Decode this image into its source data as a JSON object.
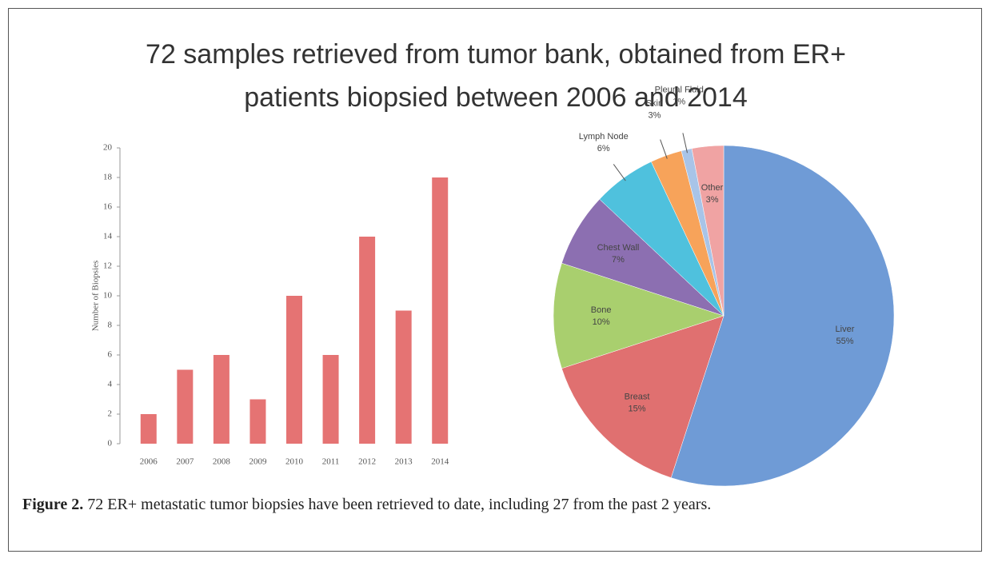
{
  "title": [
    "72 samples retrieved from tumor bank, obtained from ER+",
    "patients biopsied between 2006 and 2014"
  ],
  "caption": {
    "label": "Figure 2.",
    "text": "72 ER+ metastatic tumor biopsies have been retrieved to date, including 27 from the past 2 years."
  },
  "chart_data": [
    {
      "type": "bar",
      "y_label": "Number of Biopsies",
      "categories": [
        "2006",
        "2007",
        "2008",
        "2009",
        "2010",
        "2011",
        "2012",
        "2013",
        "2014"
      ],
      "values": [
        2,
        5,
        6,
        3,
        10,
        6,
        14,
        9,
        18
      ],
      "color": "#e57373",
      "ylim": [
        0,
        20
      ],
      "yticks": [
        0,
        2,
        4,
        6,
        8,
        10,
        12,
        14,
        16,
        18,
        20
      ]
    },
    {
      "type": "pie",
      "categories": [
        "Liver",
        "Breast",
        "Bone",
        "Chest Wall",
        "Lymph Node",
        "Skin",
        "Pleural Fluid",
        "Other"
      ],
      "values": [
        55,
        15,
        10,
        7,
        6,
        3,
        1,
        3
      ],
      "value_labels": [
        "55%",
        "15%",
        "10%",
        "7%",
        "6%",
        "3%",
        "1%",
        "3%"
      ],
      "colors": [
        "#6f9bd6",
        "#e07070",
        "#a9cf6e",
        "#8c6fb1",
        "#4fc1dd",
        "#f7a35a",
        "#a8c4e8",
        "#f0a3a3"
      ]
    }
  ]
}
